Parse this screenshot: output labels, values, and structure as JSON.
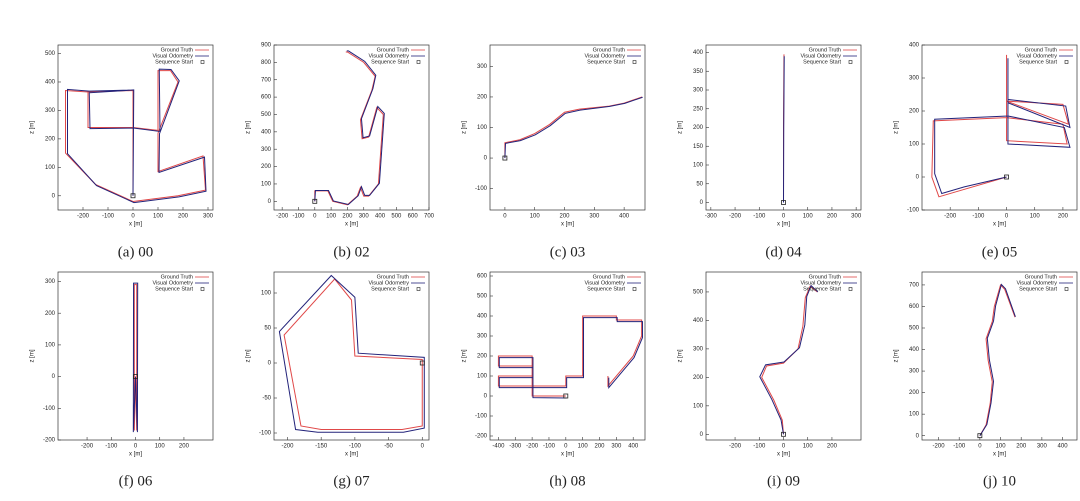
{
  "chart_data": [
    {
      "type": "line",
      "caption": "(a) 00",
      "xlabel": "x [m]",
      "ylabel": "z [m]",
      "xlim": [
        -300,
        320
      ],
      "ylim": [
        -50,
        530
      ],
      "xticks": [
        -200,
        -100,
        0,
        100,
        200,
        300
      ],
      "yticks": [
        0,
        100,
        200,
        300,
        400,
        500
      ],
      "legend": "top-right",
      "series": [
        {
          "name": "Ground Truth",
          "color": "#e04848",
          "x": [
            0,
            0,
            -180,
            -180,
            0,
            100,
            100,
            150,
            180,
            100,
            100,
            280,
            290,
            180,
            0,
            -150,
            -270,
            -270,
            -180,
            0
          ],
          "values": [
            0,
            370,
            365,
            240,
            240,
            230,
            440,
            440,
            400,
            220,
            85,
            140,
            20,
            0,
            -20,
            40,
            150,
            370,
            365,
            370
          ]
        },
        {
          "name": "Visual Odometry",
          "color": "#23237a",
          "x": [
            0,
            3,
            -175,
            -172,
            5,
            108,
            105,
            152,
            185,
            106,
            104,
            286,
            292,
            184,
            4,
            -146,
            -262,
            -262,
            -175,
            4
          ],
          "values": [
            0,
            372,
            362,
            236,
            238,
            226,
            445,
            444,
            404,
            218,
            82,
            136,
            16,
            -4,
            -24,
            36,
            148,
            374,
            368,
            372
          ]
        },
        {
          "name": "Sequence Start",
          "color": "#222222",
          "marker": "square",
          "x": [
            0
          ],
          "values": [
            0
          ]
        }
      ]
    },
    {
      "type": "line",
      "caption": "(b) 02",
      "xlabel": "x [m]",
      "ylabel": "z [m]",
      "xlim": [
        -250,
        700
      ],
      "ylim": [
        -50,
        900
      ],
      "xticks": [
        -200,
        -100,
        0,
        100,
        200,
        300,
        400,
        500,
        600,
        700
      ],
      "yticks": [
        0,
        100,
        200,
        300,
        400,
        500,
        600,
        700,
        800,
        900
      ],
      "legend": "top-right",
      "series": [
        {
          "name": "Ground Truth",
          "color": "#e04848",
          "x": [
            0,
            0,
            80,
            110,
            200,
            260,
            280,
            300,
            330,
            390,
            420,
            380,
            330,
            290,
            280,
            350,
            370,
            300,
            200,
            190
          ],
          "values": [
            0,
            60,
            60,
            0,
            -20,
            30,
            80,
            30,
            30,
            100,
            500,
            540,
            370,
            360,
            470,
            640,
            720,
            800,
            860,
            860
          ]
        },
        {
          "name": "Visual Odometry",
          "color": "#23237a",
          "x": [
            0,
            4,
            84,
            114,
            206,
            266,
            286,
            306,
            336,
            396,
            426,
            386,
            336,
            296,
            286,
            356,
            374,
            306,
            206,
            196
          ],
          "values": [
            0,
            62,
            62,
            2,
            -18,
            32,
            84,
            34,
            34,
            104,
            506,
            546,
            376,
            366,
            476,
            648,
            726,
            806,
            866,
            866
          ]
        },
        {
          "name": "Sequence Start",
          "color": "#222222",
          "marker": "square",
          "x": [
            0
          ],
          "values": [
            0
          ]
        }
      ]
    },
    {
      "type": "line",
      "caption": "(c) 03",
      "xlabel": "x [m]",
      "ylabel": "z [m]",
      "xlim": [
        -50,
        470
      ],
      "ylim": [
        -170,
        370
      ],
      "xticks": [
        0,
        100,
        200,
        300,
        400
      ],
      "yticks": [
        -100,
        0,
        100,
        200,
        300
      ],
      "legend": "top-right",
      "series": [
        {
          "name": "Ground Truth",
          "color": "#e04848",
          "x": [
            0,
            0,
            50,
            100,
            150,
            200,
            250,
            300,
            350,
            400,
            460
          ],
          "values": [
            0,
            50,
            60,
            80,
            110,
            150,
            160,
            165,
            170,
            180,
            200
          ]
        },
        {
          "name": "Visual Odometry",
          "color": "#23237a",
          "x": [
            0,
            2,
            52,
            102,
            152,
            202,
            252,
            302,
            352,
            402,
            462
          ],
          "values": [
            0,
            48,
            57,
            76,
            106,
            146,
            157,
            163,
            169,
            179,
            199
          ]
        },
        {
          "name": "Sequence Start",
          "color": "#222222",
          "marker": "square",
          "x": [
            0
          ],
          "values": [
            0
          ]
        }
      ]
    },
    {
      "type": "line",
      "caption": "(d) 04",
      "xlabel": "x [m]",
      "ylabel": "z [m]",
      "xlim": [
        -320,
        320
      ],
      "ylim": [
        -20,
        420
      ],
      "xticks": [
        -300,
        -200,
        -100,
        0,
        100,
        200,
        300
      ],
      "yticks": [
        0,
        50,
        100,
        150,
        200,
        250,
        300,
        350,
        400
      ],
      "legend": "top-right",
      "series": [
        {
          "name": "Ground Truth",
          "color": "#e04848",
          "x": [
            0,
            0,
            2
          ],
          "values": [
            0,
            200,
            395
          ]
        },
        {
          "name": "Visual Odometry",
          "color": "#23237a",
          "x": [
            0,
            1,
            3
          ],
          "values": [
            0,
            200,
            390
          ]
        },
        {
          "name": "Sequence Start",
          "color": "#222222",
          "marker": "square",
          "x": [
            0
          ],
          "values": [
            0
          ]
        }
      ]
    },
    {
      "type": "line",
      "caption": "(e) 05",
      "xlabel": "x [m]",
      "ylabel": "z [m]",
      "xlim": [
        -300,
        250
      ],
      "ylim": [
        -100,
        400
      ],
      "xticks": [
        -200,
        -100,
        0,
        100,
        200
      ],
      "yticks": [
        -100,
        0,
        100,
        200,
        300,
        400
      ],
      "legend": "top-right",
      "series": [
        {
          "name": "Ground Truth",
          "color": "#e04848",
          "x": [
            0,
            -160,
            -240,
            -265,
            -260,
            0,
            200,
            215,
            0,
            0,
            200,
            220,
            0,
            0
          ],
          "values": [
            0,
            -40,
            -60,
            0,
            170,
            180,
            160,
            100,
            110,
            230,
            220,
            160,
            230,
            370
          ]
        },
        {
          "name": "Visual Odometry",
          "color": "#23237a",
          "x": [
            0,
            -150,
            -230,
            -255,
            -255,
            5,
            205,
            225,
            5,
            5,
            210,
            225,
            5,
            5
          ],
          "values": [
            0,
            -30,
            -50,
            10,
            175,
            185,
            150,
            90,
            100,
            235,
            215,
            150,
            225,
            360
          ]
        },
        {
          "name": "Sequence Start",
          "color": "#222222",
          "marker": "square",
          "x": [
            0
          ],
          "values": [
            0
          ]
        }
      ]
    },
    {
      "type": "line",
      "caption": "(f) 06",
      "xlabel": "x [m]",
      "ylabel": "z [m]",
      "xlim": [
        -320,
        320
      ],
      "ylim": [
        -200,
        330
      ],
      "xticks": [
        -200,
        -100,
        0,
        100,
        200
      ],
      "yticks": [
        -200,
        -100,
        0,
        100,
        200,
        300
      ],
      "legend": "top-right",
      "series": [
        {
          "name": "Ground Truth",
          "color": "#e04848",
          "x": [
            0,
            5,
            5,
            -5,
            -5,
            0
          ],
          "values": [
            0,
            -170,
            290,
            290,
            -170,
            0
          ]
        },
        {
          "name": "Visual Odometry",
          "color": "#23237a",
          "x": [
            0,
            8,
            9,
            -8,
            -9,
            0
          ],
          "values": [
            0,
            -175,
            295,
            295,
            -175,
            0
          ]
        },
        {
          "name": "Sequence Start",
          "color": "#222222",
          "marker": "square",
          "x": [
            0
          ],
          "values": [
            0
          ]
        }
      ]
    },
    {
      "type": "line",
      "caption": "(g) 07",
      "xlabel": "x [m]",
      "ylabel": "z [m]",
      "xlim": [
        -220,
        10
      ],
      "ylim": [
        -110,
        130
      ],
      "xticks": [
        -200,
        -150,
        -100,
        -50,
        0
      ],
      "yticks": [
        -100,
        -50,
        0,
        50,
        100
      ],
      "legend": "top-right",
      "series": [
        {
          "name": "Ground Truth",
          "color": "#e04848",
          "x": [
            0,
            0,
            -30,
            -150,
            -180,
            -205,
            -130,
            -105,
            -100,
            0,
            0
          ],
          "values": [
            0,
            -90,
            -95,
            -95,
            -90,
            40,
            120,
            90,
            10,
            5,
            0
          ]
        },
        {
          "name": "Visual Odometry",
          "color": "#23237a",
          "x": [
            3,
            3,
            -28,
            -155,
            -188,
            -212,
            -135,
            -100,
            -95,
            3,
            3
          ],
          "values": [
            0,
            -93,
            -99,
            -99,
            -95,
            45,
            125,
            94,
            14,
            8,
            0
          ]
        },
        {
          "name": "Sequence Start",
          "color": "#222222",
          "marker": "square",
          "x": [
            0
          ],
          "values": [
            0
          ]
        }
      ]
    },
    {
      "type": "line",
      "caption": "(h) 08",
      "xlabel": "x [m]",
      "ylabel": "z [m]",
      "xlim": [
        -450,
        470
      ],
      "ylim": [
        -220,
        620
      ],
      "xticks": [
        -400,
        -300,
        -200,
        -100,
        0,
        100,
        200,
        300,
        400
      ],
      "yticks": [
        -200,
        -100,
        0,
        100,
        200,
        300,
        400,
        500,
        600
      ],
      "legend": "top-right",
      "series": [
        {
          "name": "Ground Truth",
          "color": "#e04848",
          "x": [
            0,
            -200,
            -200,
            -400,
            -400,
            -200,
            -200,
            -400,
            -400,
            -200,
            -200,
            0,
            0,
            100,
            100,
            300,
            300,
            450,
            450,
            400,
            250,
            250
          ],
          "values": [
            0,
            0,
            50,
            50,
            100,
            100,
            150,
            150,
            200,
            200,
            50,
            50,
            100,
            100,
            400,
            400,
            380,
            380,
            300,
            200,
            50,
            100
          ]
        },
        {
          "name": "Visual Odometry",
          "color": "#23237a",
          "x": [
            5,
            -195,
            -195,
            -395,
            -395,
            -195,
            -195,
            -395,
            -395,
            -195,
            -195,
            5,
            5,
            105,
            105,
            305,
            305,
            455,
            455,
            405,
            255,
            255
          ],
          "values": [
            -10,
            -8,
            42,
            42,
            92,
            92,
            142,
            142,
            192,
            192,
            42,
            42,
            92,
            92,
            392,
            392,
            372,
            372,
            292,
            192,
            42,
            92
          ]
        },
        {
          "name": "Sequence Start",
          "color": "#222222",
          "marker": "square",
          "x": [
            0
          ],
          "values": [
            0
          ]
        }
      ]
    },
    {
      "type": "line",
      "caption": "(i) 09",
      "xlabel": "x [m]",
      "ylabel": "z [m]",
      "xlim": [
        -320,
        320
      ],
      "ylim": [
        -20,
        570
      ],
      "xticks": [
        -200,
        -100,
        0,
        100,
        200
      ],
      "yticks": [
        0,
        100,
        200,
        300,
        400,
        500
      ],
      "legend": "top-right",
      "series": [
        {
          "name": "Ground Truth",
          "color": "#e04848",
          "x": [
            0,
            -5,
            -40,
            -90,
            -70,
            0,
            60,
            80,
            90,
            110,
            140
          ],
          "values": [
            0,
            50,
            120,
            200,
            240,
            250,
            300,
            380,
            480,
            520,
            500
          ]
        },
        {
          "name": "Visual Odometry",
          "color": "#23237a",
          "x": [
            0,
            -10,
            -48,
            -98,
            -74,
            2,
            66,
            88,
            96,
            114,
            142
          ],
          "values": [
            0,
            50,
            122,
            202,
            244,
            254,
            304,
            384,
            484,
            522,
            500
          ]
        },
        {
          "name": "Sequence Start",
          "color": "#222222",
          "marker": "square",
          "x": [
            0
          ],
          "values": [
            0
          ]
        }
      ]
    },
    {
      "type": "line",
      "caption": "(j) 10",
      "xlabel": "x [m]",
      "ylabel": "z [m]",
      "xlim": [
        -280,
        470
      ],
      "ylim": [
        -20,
        760
      ],
      "xticks": [
        -200,
        -100,
        0,
        100,
        200,
        300,
        400
      ],
      "yticks": [
        0,
        100,
        200,
        300,
        400,
        500,
        600,
        700
      ],
      "legend": "top-right",
      "series": [
        {
          "name": "Ground Truth",
          "color": "#e04848",
          "x": [
            0,
            30,
            50,
            60,
            40,
            30,
            60,
            70,
            100,
            120,
            170
          ],
          "values": [
            0,
            50,
            150,
            250,
            350,
            450,
            530,
            600,
            700,
            680,
            550
          ]
        },
        {
          "name": "Visual Odometry",
          "color": "#23237a",
          "x": [
            0,
            34,
            54,
            66,
            46,
            36,
            66,
            76,
            104,
            124,
            172
          ],
          "values": [
            0,
            52,
            152,
            252,
            352,
            452,
            532,
            602,
            702,
            682,
            552
          ]
        },
        {
          "name": "Sequence Start",
          "color": "#222222",
          "marker": "square",
          "x": [
            0
          ],
          "values": [
            0
          ]
        }
      ]
    }
  ]
}
